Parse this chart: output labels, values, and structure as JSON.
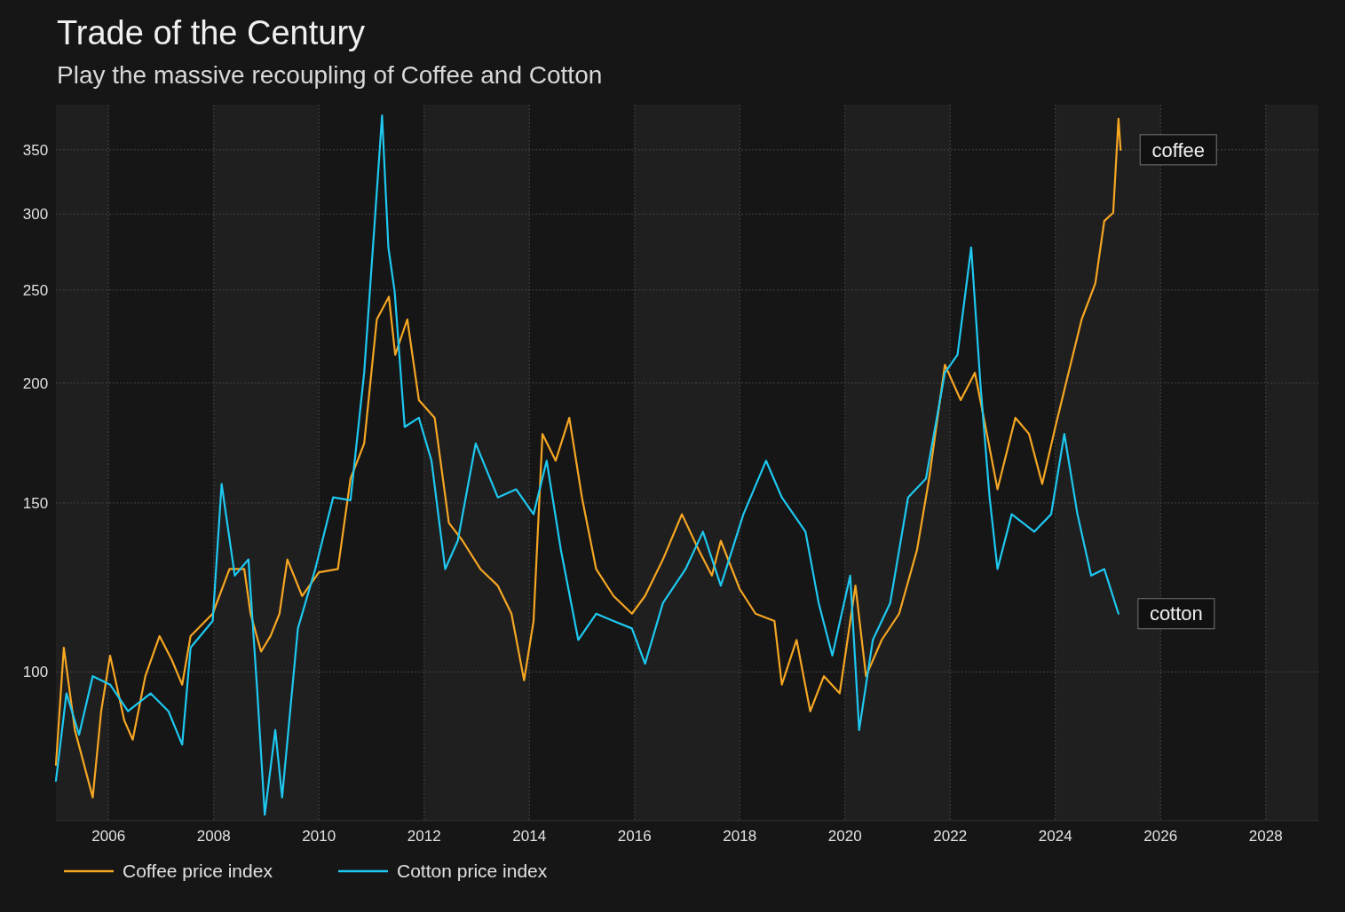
{
  "chart_data": {
    "type": "line",
    "title": "Trade of the Century",
    "subtitle": "Play the massive recoupling of Coffee and Cotton",
    "log": true,
    "grid": true,
    "legend": "bottom",
    "xlim": [
      2005,
      2029
    ],
    "xticks": [
      2006,
      2008,
      2010,
      2012,
      2014,
      2016,
      2018,
      2020,
      2022,
      2024,
      2026,
      2028
    ],
    "ylim": [
      70,
      390
    ],
    "yticks": [
      100,
      150,
      200,
      250,
      300,
      350
    ],
    "bands": [
      {
        "axis": "x",
        "from": 2005,
        "to": 2006,
        "color": "#1f1f1f"
      },
      {
        "axis": "x",
        "from": 2008,
        "to": 2010,
        "color": "#1f1f1f"
      },
      {
        "axis": "x",
        "from": 2012,
        "to": 2014,
        "color": "#1f1f1f"
      },
      {
        "axis": "x",
        "from": 2016,
        "to": 2018,
        "color": "#1f1f1f"
      },
      {
        "axis": "x",
        "from": 2020,
        "to": 2022,
        "color": "#1f1f1f"
      },
      {
        "axis": "x",
        "from": 2024,
        "to": 2026,
        "color": "#1f1f1f"
      },
      {
        "axis": "x",
        "from": 2028,
        "to": 2029,
        "color": "#1f1f1f"
      }
    ],
    "annotations": [
      {
        "text": "coffee",
        "x": 2025.24,
        "y": 350
      },
      {
        "text": "cotton",
        "x": 2025.2,
        "y": 115
      }
    ],
    "series": [
      {
        "name": "Coffee price index",
        "color": "#f5a623",
        "x": [
          2005.0,
          2005.15,
          2005.36,
          2005.7,
          2005.86,
          2006.03,
          2006.3,
          2006.46,
          2006.7,
          2006.97,
          2007.2,
          2007.4,
          2007.56,
          2007.98,
          2008.3,
          2008.58,
          2008.7,
          2008.9,
          2009.08,
          2009.25,
          2009.4,
          2009.68,
          2010.0,
          2010.36,
          2010.6,
          2010.86,
          2011.1,
          2011.33,
          2011.45,
          2011.68,
          2011.9,
          2012.2,
          2012.47,
          2012.73,
          2013.07,
          2013.4,
          2013.66,
          2013.9,
          2014.08,
          2014.25,
          2014.5,
          2014.76,
          2015.0,
          2015.27,
          2015.6,
          2015.95,
          2016.2,
          2016.54,
          2016.9,
          2017.22,
          2017.47,
          2017.64,
          2018.0,
          2018.3,
          2018.66,
          2018.8,
          2019.08,
          2019.34,
          2019.6,
          2019.9,
          2020.2,
          2020.4,
          2020.7,
          2021.03,
          2021.37,
          2021.6,
          2021.9,
          2022.2,
          2022.47,
          2022.64,
          2022.9,
          2023.24,
          2023.5,
          2023.75,
          2024.0,
          2024.25,
          2024.5,
          2024.76,
          2024.93,
          2025.1,
          2025.2,
          2025.24
        ],
        "values": [
          80,
          106,
          87,
          74,
          91,
          104,
          89,
          85,
          99,
          109,
          103,
          97,
          109,
          115,
          128,
          128,
          115,
          105,
          109,
          115,
          131,
          120,
          127,
          128,
          159,
          173,
          233,
          246,
          214,
          233,
          192,
          184,
          143,
          137,
          128,
          123,
          115,
          98,
          113,
          177,
          166,
          184,
          152,
          128,
          120,
          115,
          120,
          131,
          146,
          134,
          126,
          137,
          122,
          115,
          113,
          97,
          108,
          91,
          99,
          95,
          123,
          99,
          108,
          115,
          134,
          159,
          209,
          192,
          205,
          184,
          155,
          184,
          177,
          157,
          180,
          205,
          233,
          254,
          295,
          301,
          377,
          350
        ]
      },
      {
        "name": "Cotton price index",
        "color": "#1ec8f0",
        "x": [
          2005.0,
          2005.2,
          2005.44,
          2005.7,
          2006.03,
          2006.37,
          2006.8,
          2007.14,
          2007.4,
          2007.56,
          2007.98,
          2008.15,
          2008.4,
          2008.66,
          2008.83,
          2008.97,
          2009.17,
          2009.3,
          2009.6,
          2009.93,
          2010.27,
          2010.6,
          2010.86,
          2011.12,
          2011.2,
          2011.32,
          2011.44,
          2011.63,
          2011.9,
          2012.14,
          2012.4,
          2012.64,
          2012.98,
          2013.4,
          2013.75,
          2014.08,
          2014.33,
          2014.6,
          2014.93,
          2015.27,
          2015.6,
          2015.95,
          2016.2,
          2016.54,
          2016.97,
          2017.3,
          2017.64,
          2018.07,
          2018.5,
          2018.8,
          2019.25,
          2019.5,
          2019.76,
          2020.1,
          2020.27,
          2020.53,
          2020.86,
          2021.2,
          2021.54,
          2021.9,
          2022.14,
          2022.4,
          2022.58,
          2022.75,
          2022.9,
          2023.17,
          2023.6,
          2023.92,
          2024.17,
          2024.42,
          2024.68,
          2024.93,
          2025.2
        ],
        "values": [
          77,
          95,
          86,
          99,
          97,
          91,
          95,
          91,
          84,
          106,
          113,
          157,
          126,
          131,
          95,
          71,
          87,
          74,
          111,
          128,
          152,
          151,
          205,
          328,
          380,
          277,
          249,
          180,
          184,
          166,
          128,
          137,
          173,
          152,
          155,
          146,
          166,
          134,
          108,
          115,
          113,
          111,
          102,
          118,
          128,
          140,
          123,
          146,
          166,
          152,
          140,
          118,
          104,
          126,
          87,
          108,
          118,
          152,
          159,
          205,
          214,
          277,
          198,
          152,
          128,
          146,
          140,
          146,
          177,
          146,
          126,
          128,
          115
        ]
      }
    ]
  }
}
